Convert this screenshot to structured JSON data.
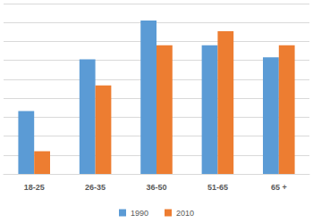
{
  "chart_data": {
    "type": "bar",
    "categories": [
      "18-25",
      "26-35",
      "36-50",
      "51-65",
      "65 +"
    ],
    "series": [
      {
        "name": "1990",
        "color": "#5b9bd5",
        "values": [
          16.6,
          30.3,
          40.5,
          34,
          30.8
        ]
      },
      {
        "name": "2010",
        "color": "#ed7d31",
        "values": [
          6,
          23.4,
          34,
          37.7,
          34
        ]
      }
    ],
    "ylim": [
      0,
      45
    ],
    "yticks": [
      0,
      5,
      10,
      15,
      20,
      25,
      30,
      35,
      40,
      45
    ],
    "grid": true,
    "legend": "bottom",
    "tick_labels": "x"
  }
}
